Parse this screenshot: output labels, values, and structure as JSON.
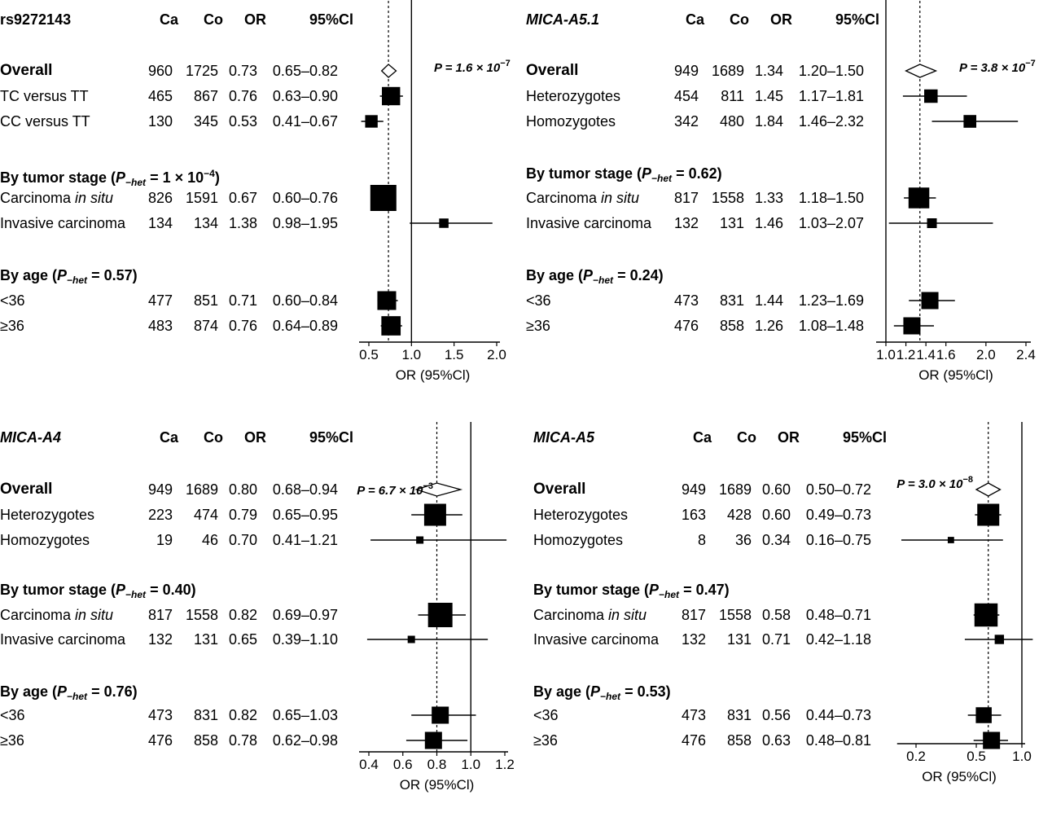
{
  "columns": {
    "ca": "Ca",
    "co": "Co",
    "or": "OR",
    "ci": "95%Cl"
  },
  "axis_label": "OR (95%Cl)",
  "panels": [
    {
      "title": "rs9272143",
      "title_italic": false,
      "p_label": "P = 1.6 × 10",
      "p_exp": "−7",
      "rows": [
        {
          "type": "data",
          "label": "Overall",
          "ca": "960",
          "co": "1725",
          "or": "0.73",
          "ci": "0.65–0.82",
          "bold": true
        },
        {
          "type": "data",
          "label": "TC versus TT",
          "ca": "465",
          "co": "867",
          "or": "0.76",
          "ci": "0.63–0.90"
        },
        {
          "type": "data",
          "label": "CC versus TT",
          "ca": "130",
          "co": "345",
          "or": "0.53",
          "ci": "0.41–0.67"
        },
        {
          "type": "header",
          "pre": "By tumor stage (",
          "p": "P",
          "sub": "−het",
          "post": " = 1 × 10",
          "sup": "−4",
          "end": ")"
        },
        {
          "type": "data",
          "label": "Carcinoma ",
          "label_it": "in situ",
          "ca": "826",
          "co": "1591",
          "or": "0.67",
          "ci": "0.60–0.76"
        },
        {
          "type": "data",
          "label": "Invasive carcinoma",
          "ca": "134",
          "co": "134",
          "or": "1.38",
          "ci": "0.98–1.95"
        },
        {
          "type": "header",
          "pre": "By age (",
          "p": "P",
          "sub": "−het",
          "post": " = 0.57)",
          "sup": "",
          "end": ""
        },
        {
          "type": "data",
          "label": "<36",
          "ca": "477",
          "co": "851",
          "or": "0.71",
          "ci": "0.60–0.84"
        },
        {
          "type": "data",
          "label": "≥36",
          "ca": "483",
          "co": "874",
          "or": "0.76",
          "ci": "0.64–0.89"
        }
      ],
      "ticks": [
        "0.5",
        "1.0",
        "1.5",
        "2.0"
      ]
    },
    {
      "title": "MICA-A5.1",
      "title_italic": true,
      "p_label": "P = 3.8 × 10",
      "p_exp": "−7",
      "rows": [
        {
          "type": "data",
          "label": "Overall",
          "ca": "949",
          "co": "1689",
          "or": "1.34",
          "ci": "1.20–1.50",
          "bold": true
        },
        {
          "type": "data",
          "label": "Heterozygotes",
          "ca": "454",
          "co": "811",
          "or": "1.45",
          "ci": "1.17–1.81"
        },
        {
          "type": "data",
          "label": "Homozygotes",
          "ca": "342",
          "co": "480",
          "or": "1.84",
          "ci": "1.46–2.32"
        },
        {
          "type": "header",
          "pre": "By tumor stage (",
          "p": "P",
          "sub": "−het",
          "post": " = 0.62)",
          "sup": "",
          "end": ""
        },
        {
          "type": "data",
          "label": "Carcinoma ",
          "label_it": "in situ",
          "ca": "817",
          "co": "1558",
          "or": "1.33",
          "ci": "1.18–1.50"
        },
        {
          "type": "data",
          "label": "Invasive carcinoma",
          "ca": "132",
          "co": "131",
          "or": "1.46",
          "ci": "1.03–2.07"
        },
        {
          "type": "header",
          "pre": "By age (",
          "p": "P",
          "sub": "−het",
          "post": " = 0.24)",
          "sup": "",
          "end": ""
        },
        {
          "type": "data",
          "label": "<36",
          "ca": "473",
          "co": "831",
          "or": "1.44",
          "ci": "1.23–1.69"
        },
        {
          "type": "data",
          "label": "≥36",
          "ca": "476",
          "co": "858",
          "or": "1.26",
          "ci": "1.08–1.48"
        }
      ],
      "ticks": [
        "1.0",
        "1.2",
        "1.4",
        "1.6",
        "2.0",
        "2.4"
      ]
    },
    {
      "title": "MICA-A4",
      "title_italic": true,
      "p_label": "P = 6.7 × 10",
      "p_exp": "−3",
      "rows": [
        {
          "type": "data",
          "label": "Overall",
          "ca": "949",
          "co": "1689",
          "or": "0.80",
          "ci": "0.68–0.94",
          "bold": true
        },
        {
          "type": "data",
          "label": "Heterozygotes",
          "ca": "223",
          "co": "474",
          "or": "0.79",
          "ci": "0.65–0.95"
        },
        {
          "type": "data",
          "label": "Homozygotes",
          "ca": "19",
          "co": "46",
          "or": "0.70",
          "ci": "0.41–1.21"
        },
        {
          "type": "header",
          "pre": "By tumor stage (",
          "p": "P",
          "sub": "−het",
          "post": " = 0.40)",
          "sup": "",
          "end": ""
        },
        {
          "type": "data",
          "label": "Carcinoma ",
          "label_it": "in situ",
          "ca": "817",
          "co": "1558",
          "or": "0.82",
          "ci": "0.69–0.97"
        },
        {
          "type": "data",
          "label": "Invasive carcinoma",
          "ca": "132",
          "co": "131",
          "or": "0.65",
          "ci": "0.39–1.10"
        },
        {
          "type": "header",
          "pre": "By age (",
          "p": "P",
          "sub": "−het",
          "post": " = 0.76)",
          "sup": "",
          "end": ""
        },
        {
          "type": "data",
          "label": "<36",
          "ca": "473",
          "co": "831",
          "or": "0.82",
          "ci": "0.65–1.03"
        },
        {
          "type": "data",
          "label": "≥36",
          "ca": "476",
          "co": "858",
          "or": "0.78",
          "ci": "0.62–0.98"
        }
      ],
      "ticks": [
        "0.4",
        "0.6",
        "0.8",
        "1.0",
        "1.2"
      ]
    },
    {
      "title": "MICA-A5",
      "title_italic": true,
      "p_label": "P = 3.0 × 10",
      "p_exp": "−8",
      "rows": [
        {
          "type": "data",
          "label": "Overall",
          "ca": "949",
          "co": "1689",
          "or": "0.60",
          "ci": "0.50–0.72",
          "bold": true
        },
        {
          "type": "data",
          "label": "Heterozygotes",
          "ca": "163",
          "co": "428",
          "or": "0.60",
          "ci": "0.49–0.73"
        },
        {
          "type": "data",
          "label": "Homozygotes",
          "ca": "8",
          "co": "36",
          "or": "0.34",
          "ci": "0.16–0.75"
        },
        {
          "type": "header",
          "pre": "By tumor stage (",
          "p": "P",
          "sub": "−het",
          "post": " = 0.47)",
          "sup": "",
          "end": ""
        },
        {
          "type": "data",
          "label": "Carcinoma ",
          "label_it": "in situ",
          "ca": "817",
          "co": "1558",
          "or": "0.58",
          "ci": "0.48–0.71"
        },
        {
          "type": "data",
          "label": "Invasive carcinoma",
          "ca": "132",
          "co": "131",
          "or": "0.71",
          "ci": "0.42–1.18"
        },
        {
          "type": "header",
          "pre": "By age (",
          "p": "P",
          "sub": "−het",
          "post": " = 0.53)",
          "sup": "",
          "end": ""
        },
        {
          "type": "data",
          "label": "<36",
          "ca": "473",
          "co": "831",
          "or": "0.56",
          "ci": "0.44–0.73"
        },
        {
          "type": "data",
          "label": "≥36",
          "ca": "476",
          "co": "858",
          "or": "0.63",
          "ci": "0.48–0.81"
        }
      ],
      "ticks": [
        "0.2",
        "0.5",
        "1.0"
      ]
    }
  ],
  "chart_data": [
    {
      "type": "forest",
      "title": "rs9272143",
      "xlabel": "OR (95%Cl)",
      "x_ticks": [
        0.5,
        1.0,
        1.5,
        2.0
      ],
      "xlim": [
        0.45,
        2.05
      ],
      "reference_line": 1.0,
      "overall_line": 0.73,
      "points": [
        {
          "label": "Overall",
          "or": 0.73,
          "lo": 0.65,
          "hi": 0.82,
          "shape": "diamond",
          "size": 1.0
        },
        {
          "label": "TC versus TT",
          "or": 0.76,
          "lo": 0.63,
          "hi": 0.9,
          "shape": "square",
          "size": 0.7
        },
        {
          "label": "CC versus TT",
          "or": 0.53,
          "lo": 0.41,
          "hi": 0.67,
          "shape": "square",
          "size": 0.48
        },
        {
          "label": "Carcinoma in situ",
          "or": 0.67,
          "lo": 0.6,
          "hi": 0.76,
          "shape": "square",
          "size": 1.0
        },
        {
          "label": "Invasive carcinoma",
          "or": 1.38,
          "lo": 0.98,
          "hi": 1.95,
          "shape": "square",
          "size": 0.36
        },
        {
          "label": "<36",
          "or": 0.71,
          "lo": 0.6,
          "hi": 0.84,
          "shape": "square",
          "size": 0.72
        },
        {
          "label": "≥36",
          "or": 0.76,
          "lo": 0.64,
          "hi": 0.89,
          "shape": "square",
          "size": 0.74
        }
      ]
    },
    {
      "type": "forest",
      "title": "MICA-A5.1",
      "xlabel": "OR (95%Cl)",
      "x_ticks": [
        1.0,
        1.2,
        1.4,
        1.6,
        2.0,
        2.4
      ],
      "xlim": [
        1.0,
        2.4
      ],
      "reference_line": 1.0,
      "overall_line": 1.34,
      "points": [
        {
          "label": "Overall",
          "or": 1.34,
          "lo": 1.2,
          "hi": 1.5,
          "shape": "diamond",
          "size": 1.0
        },
        {
          "label": "Heterozygotes",
          "or": 1.45,
          "lo": 1.17,
          "hi": 1.81,
          "shape": "square",
          "size": 0.55
        },
        {
          "label": "Homozygotes",
          "or": 1.84,
          "lo": 1.46,
          "hi": 2.32,
          "shape": "square",
          "size": 0.52
        },
        {
          "label": "Carcinoma in situ",
          "or": 1.33,
          "lo": 1.18,
          "hi": 1.5,
          "shape": "square",
          "size": 0.85
        },
        {
          "label": "Invasive carcinoma",
          "or": 1.46,
          "lo": 1.03,
          "hi": 2.07,
          "shape": "square",
          "size": 0.4
        },
        {
          "label": "<36",
          "or": 1.44,
          "lo": 1.23,
          "hi": 1.69,
          "shape": "square",
          "size": 0.7
        },
        {
          "label": "≥36",
          "or": 1.26,
          "lo": 1.08,
          "hi": 1.48,
          "shape": "square",
          "size": 0.7
        }
      ]
    },
    {
      "type": "forest",
      "title": "MICA-A4",
      "xlabel": "OR (95%Cl)",
      "x_ticks": [
        0.4,
        0.6,
        0.8,
        1.0,
        1.2
      ],
      "xlim": [
        0.4,
        1.2
      ],
      "reference_line": 1.0,
      "overall_line": 0.8,
      "points": [
        {
          "label": "Overall",
          "or": 0.8,
          "lo": 0.68,
          "hi": 0.94,
          "shape": "diamond",
          "size": 1.0
        },
        {
          "label": "Heterozygotes",
          "or": 0.79,
          "lo": 0.65,
          "hi": 0.95,
          "shape": "square",
          "size": 0.9
        },
        {
          "label": "Homozygotes",
          "or": 0.7,
          "lo": 0.41,
          "hi": 1.21,
          "shape": "square",
          "size": 0.3
        },
        {
          "label": "Carcinoma in situ",
          "or": 0.82,
          "lo": 0.69,
          "hi": 0.97,
          "shape": "square",
          "size": 1.0
        },
        {
          "label": "Invasive carcinoma",
          "or": 0.65,
          "lo": 0.39,
          "hi": 1.1,
          "shape": "square",
          "size": 0.3
        },
        {
          "label": "<36",
          "or": 0.82,
          "lo": 0.65,
          "hi": 1.03,
          "shape": "square",
          "size": 0.7
        },
        {
          "label": "≥36",
          "or": 0.78,
          "lo": 0.62,
          "hi": 0.98,
          "shape": "square",
          "size": 0.7
        }
      ]
    },
    {
      "type": "forest",
      "title": "MICA-A5",
      "xlabel": "OR (95%Cl)",
      "x_ticks": [
        0.2,
        0.5,
        1.0
      ],
      "xlim": [
        0.15,
        1.18
      ],
      "reference_line": 1.0,
      "overall_line": 0.6,
      "points": [
        {
          "label": "Overall",
          "or": 0.6,
          "lo": 0.5,
          "hi": 0.72,
          "shape": "diamond",
          "size": 1.0
        },
        {
          "label": "Heterozygotes",
          "or": 0.6,
          "lo": 0.49,
          "hi": 0.73,
          "shape": "square",
          "size": 0.9
        },
        {
          "label": "Homozygotes",
          "or": 0.34,
          "lo": 0.16,
          "hi": 0.75,
          "shape": "square",
          "size": 0.26
        },
        {
          "label": "Carcinoma in situ",
          "or": 0.58,
          "lo": 0.48,
          "hi": 0.71,
          "shape": "square",
          "size": 0.95
        },
        {
          "label": "Invasive carcinoma",
          "or": 0.71,
          "lo": 0.42,
          "hi": 1.18,
          "shape": "square",
          "size": 0.38
        },
        {
          "label": "<36",
          "or": 0.56,
          "lo": 0.44,
          "hi": 0.73,
          "shape": "square",
          "size": 0.65
        },
        {
          "label": "≥36",
          "or": 0.63,
          "lo": 0.48,
          "hi": 0.81,
          "shape": "square",
          "size": 0.7
        }
      ]
    }
  ]
}
